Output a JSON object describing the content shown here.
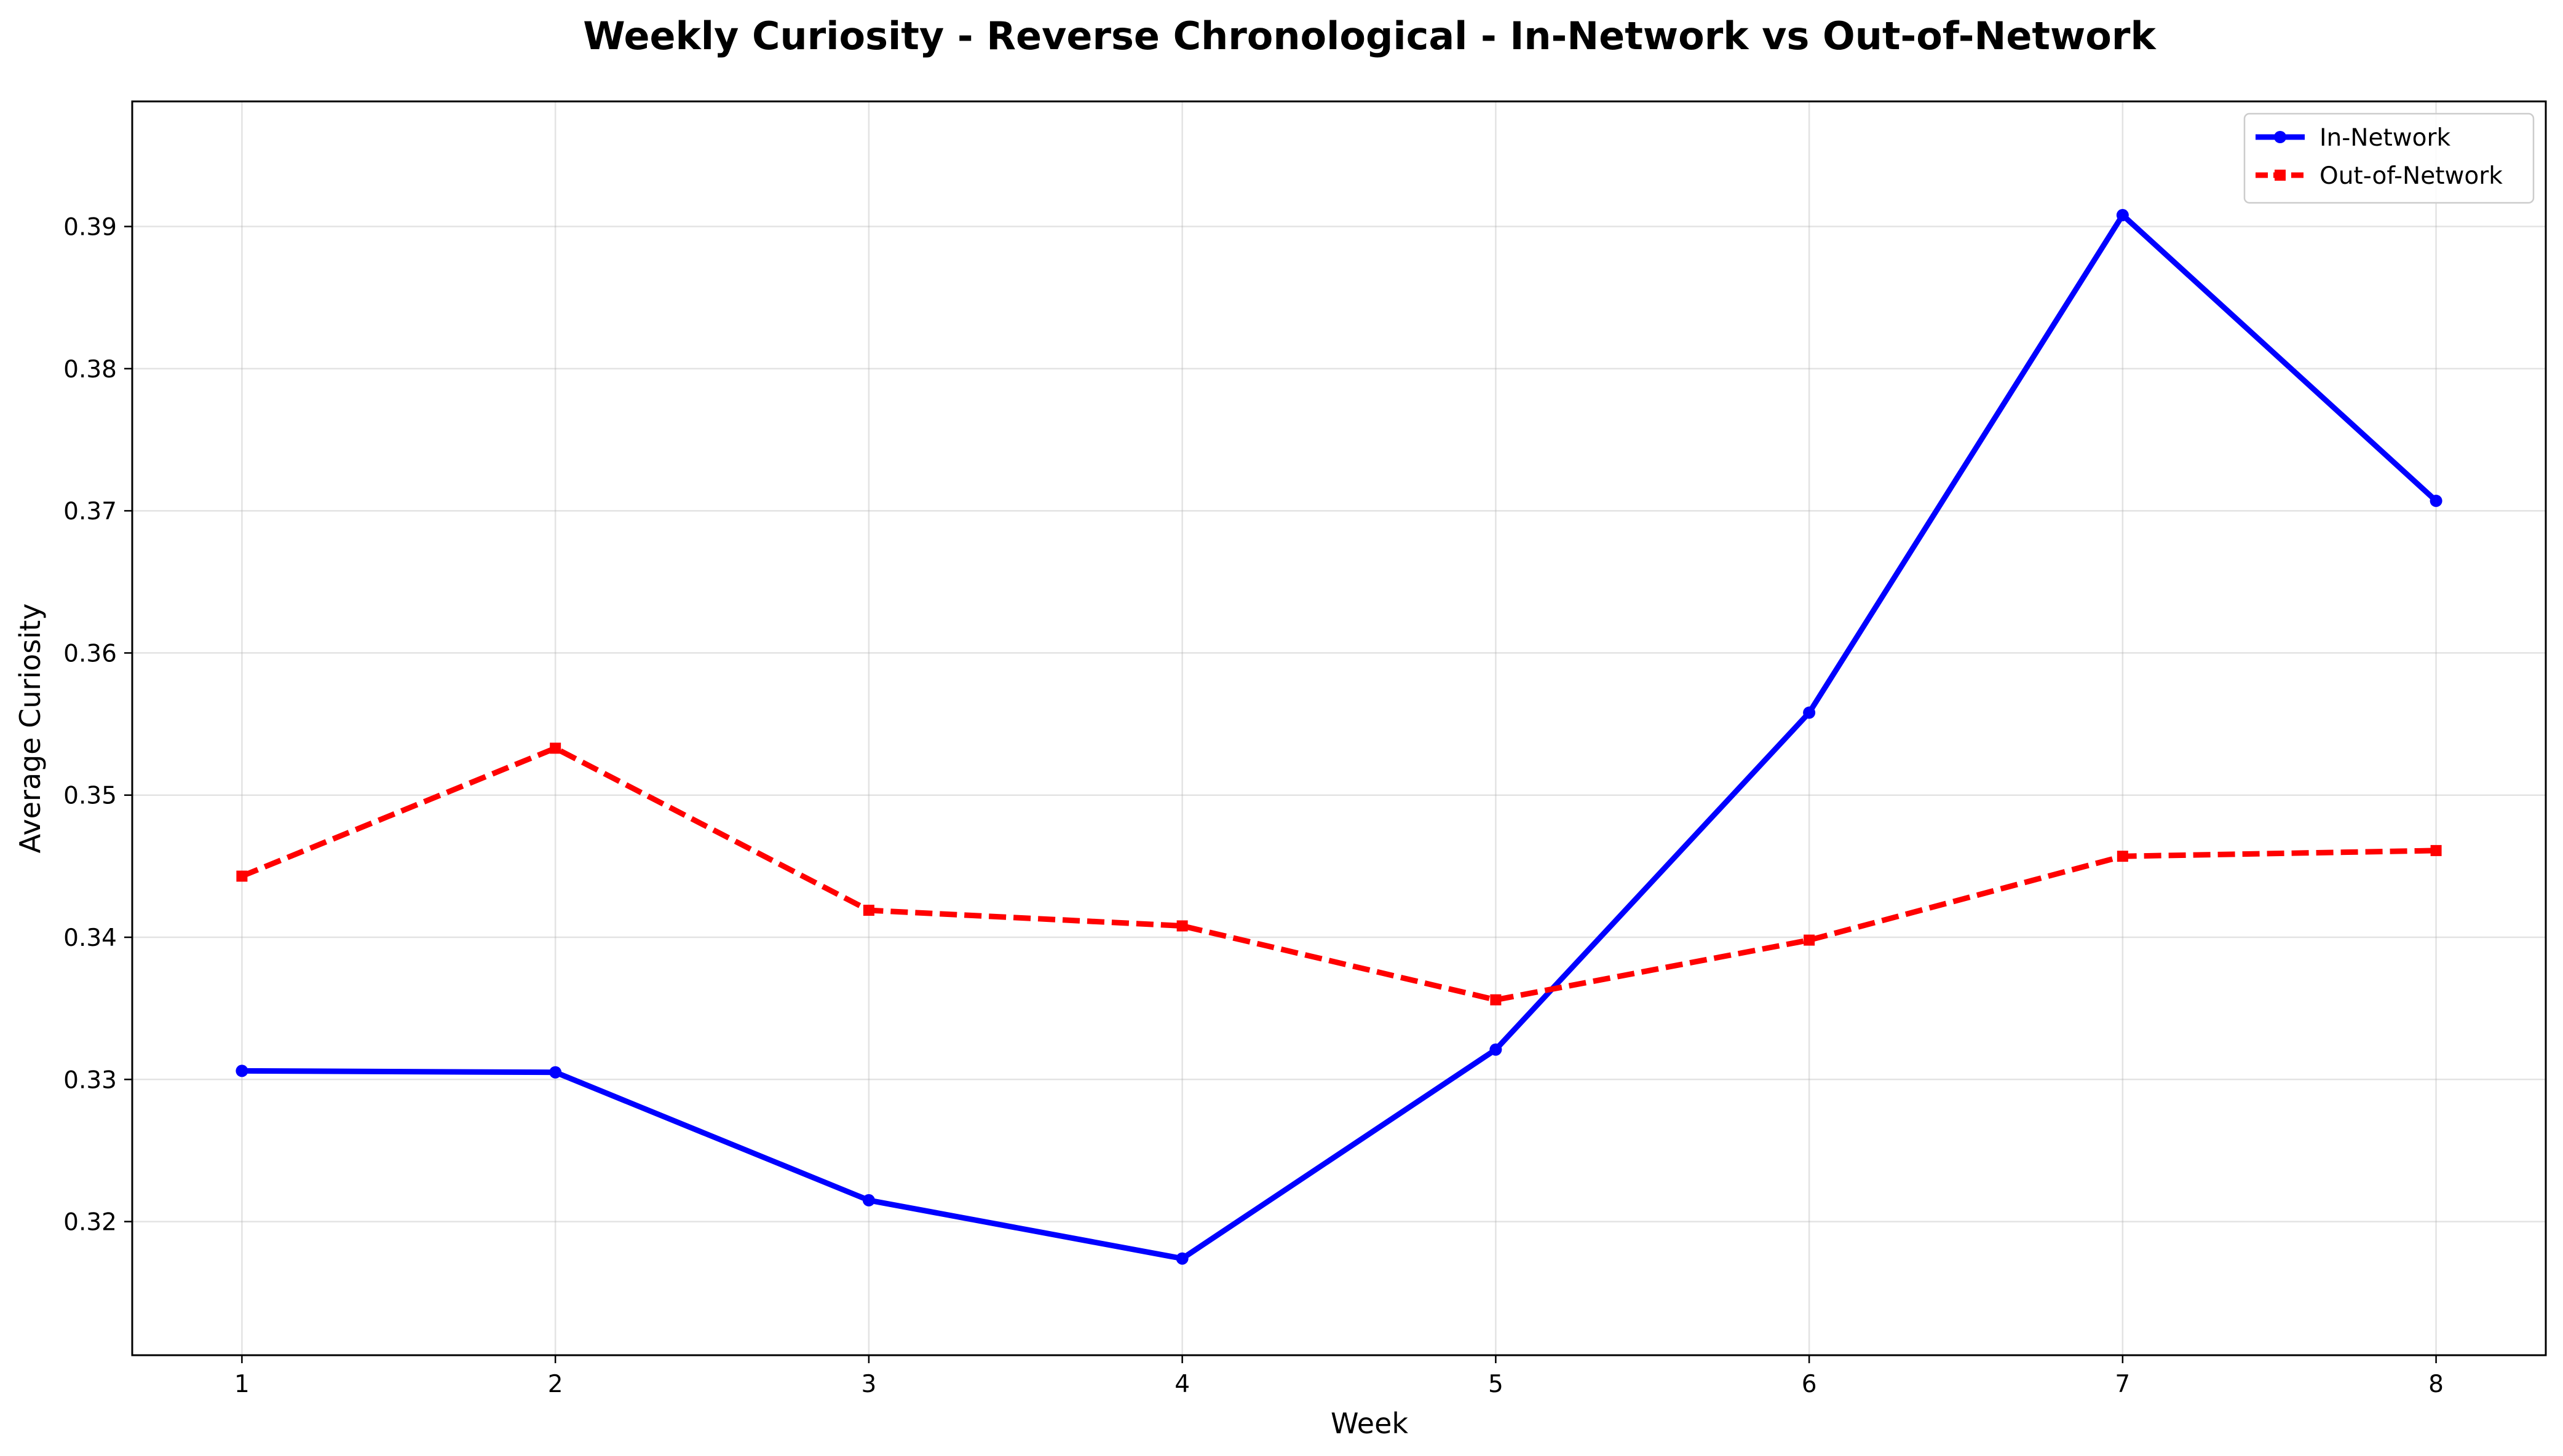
{
  "chart_data": {
    "type": "line",
    "title": "Weekly Curiosity - Reverse Chronological - In-Network vs Out-of-Network",
    "xlabel": "Week",
    "ylabel": "Average Curiosity",
    "x": [
      1,
      2,
      3,
      4,
      5,
      6,
      7,
      8
    ],
    "xlim": [
      0.65,
      8.35
    ],
    "ylim": [
      0.3106,
      0.3988
    ],
    "xticks": [
      1,
      2,
      3,
      4,
      5,
      6,
      7,
      8
    ],
    "yticks": [
      0.32,
      0.33,
      0.34,
      0.35,
      0.36,
      0.37,
      0.38,
      0.39
    ],
    "grid": true,
    "legend_position": "top-right",
    "series": [
      {
        "name": "In-Network",
        "color": "#0000ff",
        "style": "solid",
        "marker": "circle",
        "values": [
          0.3306,
          0.3305,
          0.3215,
          0.3174,
          0.3321,
          0.3558,
          0.3908,
          0.3707
        ]
      },
      {
        "name": "Out-of-Network",
        "color": "#ff0000",
        "style": "dashed",
        "marker": "square",
        "values": [
          0.3443,
          0.3533,
          0.3419,
          0.3408,
          0.3356,
          0.3398,
          0.3457,
          0.3461
        ]
      }
    ]
  }
}
